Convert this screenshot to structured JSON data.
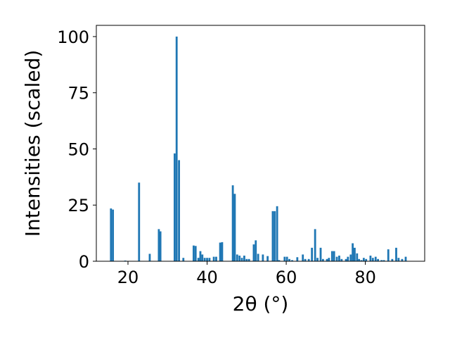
{
  "chart_data": {
    "type": "bar",
    "xlabel": "2θ (°)",
    "ylabel": "Intensities (scaled)",
    "xlim": [
      12,
      95
    ],
    "ylim": [
      0,
      105
    ],
    "xticks": [
      20,
      40,
      60,
      80
    ],
    "yticks": [
      0,
      25,
      50,
      75,
      100
    ],
    "bar_color": "#1f77b4",
    "bar_width": 0.5,
    "bars": [
      {
        "x": 15.7,
        "y": 23.5
      },
      {
        "x": 16.2,
        "y": 23.0
      },
      {
        "x": 19.3,
        "y": 0.3
      },
      {
        "x": 22.8,
        "y": 35.0
      },
      {
        "x": 25.5,
        "y": 3.3
      },
      {
        "x": 27.8,
        "y": 14.3
      },
      {
        "x": 28.2,
        "y": 13.3
      },
      {
        "x": 31.8,
        "y": 48.0
      },
      {
        "x": 32.3,
        "y": 100.0
      },
      {
        "x": 32.9,
        "y": 45.0
      },
      {
        "x": 34.0,
        "y": 1.5
      },
      {
        "x": 36.6,
        "y": 7.0
      },
      {
        "x": 37.1,
        "y": 6.8
      },
      {
        "x": 37.8,
        "y": 1.5
      },
      {
        "x": 38.3,
        "y": 4.5
      },
      {
        "x": 38.8,
        "y": 3.0
      },
      {
        "x": 39.4,
        "y": 1.5
      },
      {
        "x": 40.0,
        "y": 1.5
      },
      {
        "x": 40.6,
        "y": 1.5
      },
      {
        "x": 41.7,
        "y": 2.0
      },
      {
        "x": 42.3,
        "y": 2.0
      },
      {
        "x": 43.3,
        "y": 8.3
      },
      {
        "x": 43.8,
        "y": 8.5
      },
      {
        "x": 46.5,
        "y": 33.8
      },
      {
        "x": 47.0,
        "y": 30.0
      },
      {
        "x": 47.6,
        "y": 3.0
      },
      {
        "x": 48.2,
        "y": 2.5
      },
      {
        "x": 48.8,
        "y": 1.5
      },
      {
        "x": 49.4,
        "y": 2.5
      },
      {
        "x": 50.0,
        "y": 1.0
      },
      {
        "x": 50.6,
        "y": 1.0
      },
      {
        "x": 51.8,
        "y": 7.5
      },
      {
        "x": 52.3,
        "y": 9.3
      },
      {
        "x": 52.9,
        "y": 3.3
      },
      {
        "x": 54.1,
        "y": 3.0
      },
      {
        "x": 55.3,
        "y": 2.3
      },
      {
        "x": 56.6,
        "y": 22.3
      },
      {
        "x": 57.1,
        "y": 22.3
      },
      {
        "x": 57.7,
        "y": 24.5
      },
      {
        "x": 58.2,
        "y": 0.5
      },
      {
        "x": 59.6,
        "y": 2.0
      },
      {
        "x": 60.2,
        "y": 2.0
      },
      {
        "x": 60.8,
        "y": 1.0
      },
      {
        "x": 61.5,
        "y": 0.5
      },
      {
        "x": 62.8,
        "y": 1.8
      },
      {
        "x": 64.2,
        "y": 3.0
      },
      {
        "x": 64.8,
        "y": 1.0
      },
      {
        "x": 65.7,
        "y": 1.0
      },
      {
        "x": 66.5,
        "y": 6.0
      },
      {
        "x": 67.3,
        "y": 14.3
      },
      {
        "x": 67.9,
        "y": 1.5
      },
      {
        "x": 68.7,
        "y": 6.0
      },
      {
        "x": 69.3,
        "y": 1.0
      },
      {
        "x": 70.3,
        "y": 1.0
      },
      {
        "x": 70.8,
        "y": 1.5
      },
      {
        "x": 71.6,
        "y": 4.5
      },
      {
        "x": 72.1,
        "y": 4.5
      },
      {
        "x": 72.8,
        "y": 2.0
      },
      {
        "x": 73.4,
        "y": 2.5
      },
      {
        "x": 74.0,
        "y": 1.0
      },
      {
        "x": 75.1,
        "y": 1.0
      },
      {
        "x": 75.6,
        "y": 2.0
      },
      {
        "x": 76.3,
        "y": 3.0
      },
      {
        "x": 76.8,
        "y": 8.0
      },
      {
        "x": 77.3,
        "y": 6.0
      },
      {
        "x": 77.9,
        "y": 3.5
      },
      {
        "x": 78.4,
        "y": 1.0
      },
      {
        "x": 79.0,
        "y": 0.5
      },
      {
        "x": 79.6,
        "y": 1.5
      },
      {
        "x": 80.2,
        "y": 1.0
      },
      {
        "x": 81.3,
        "y": 2.5
      },
      {
        "x": 81.9,
        "y": 1.5
      },
      {
        "x": 82.6,
        "y": 2.0
      },
      {
        "x": 83.2,
        "y": 1.0
      },
      {
        "x": 84.1,
        "y": 0.5
      },
      {
        "x": 84.7,
        "y": 0.5
      },
      {
        "x": 85.8,
        "y": 5.3
      },
      {
        "x": 86.8,
        "y": 1.0
      },
      {
        "x": 87.8,
        "y": 6.0
      },
      {
        "x": 88.4,
        "y": 1.5
      },
      {
        "x": 89.3,
        "y": 1.0
      },
      {
        "x": 90.2,
        "y": 2.0
      }
    ]
  }
}
